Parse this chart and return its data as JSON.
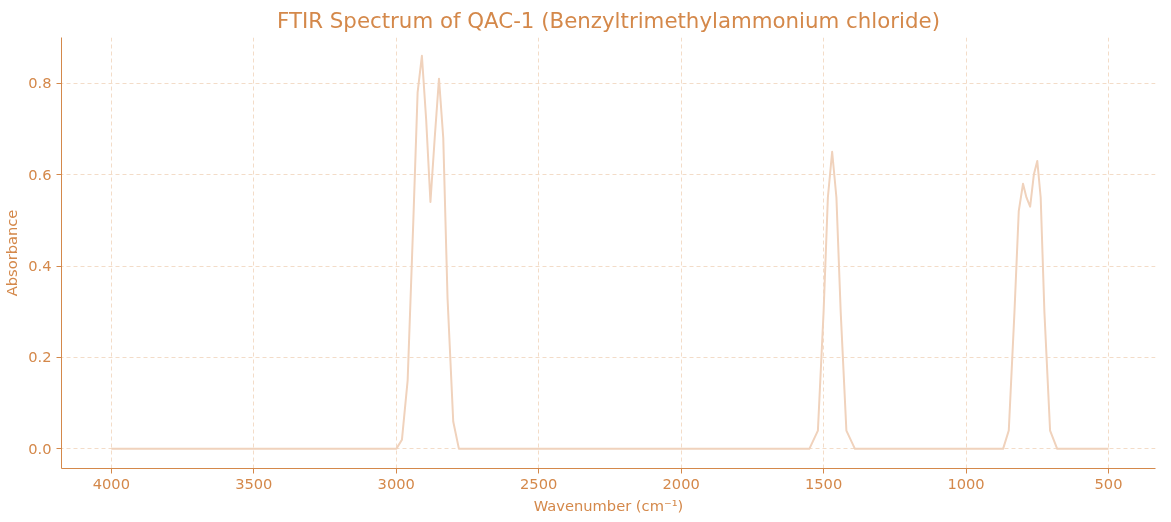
{
  "chart_data": {
    "type": "line",
    "title": "FTIR Spectrum of QAC-1 (Benzyltrimethylammonium chloride)",
    "xlabel": "Wavenumber (cm⁻¹)",
    "ylabel": "Absorbance",
    "series": [
      {
        "color": "#f0d2bc",
        "x": [
          4000,
          3000,
          2980,
          2960,
          2940,
          2925,
          2910,
          2895,
          2880,
          2865,
          2850,
          2835,
          2820,
          2800,
          2780,
          1550,
          1520,
          1500,
          1485,
          1470,
          1455,
          1440,
          1420,
          1390,
          870,
          850,
          830,
          815,
          800,
          788,
          775,
          762,
          750,
          738,
          725,
          705,
          680,
          500
        ],
        "values": [
          0,
          0,
          0.02,
          0.15,
          0.5,
          0.78,
          0.86,
          0.72,
          0.54,
          0.68,
          0.81,
          0.68,
          0.33,
          0.06,
          0,
          0,
          0.04,
          0.3,
          0.55,
          0.65,
          0.55,
          0.3,
          0.04,
          0,
          0,
          0.04,
          0.3,
          0.52,
          0.58,
          0.55,
          0.53,
          0.6,
          0.63,
          0.55,
          0.3,
          0.04,
          0,
          0
        ]
      }
    ],
    "xlim": [
      4175,
      335
    ],
    "xticks": [
      4000,
      3500,
      3000,
      2500,
      2000,
      1500,
      1000,
      500
    ],
    "ylim": [
      -0.043,
      0.9
    ],
    "yticks": [
      {
        "value": 0,
        "label": "0.0"
      },
      {
        "value": 0.2,
        "label": "0.2"
      },
      {
        "value": 0.4,
        "label": "0.4"
      },
      {
        "value": 0.6,
        "label": "0.6"
      },
      {
        "value": 0.8,
        "label": "0.8"
      }
    ],
    "grid": true,
    "line_style": "solid",
    "marker": "none"
  }
}
